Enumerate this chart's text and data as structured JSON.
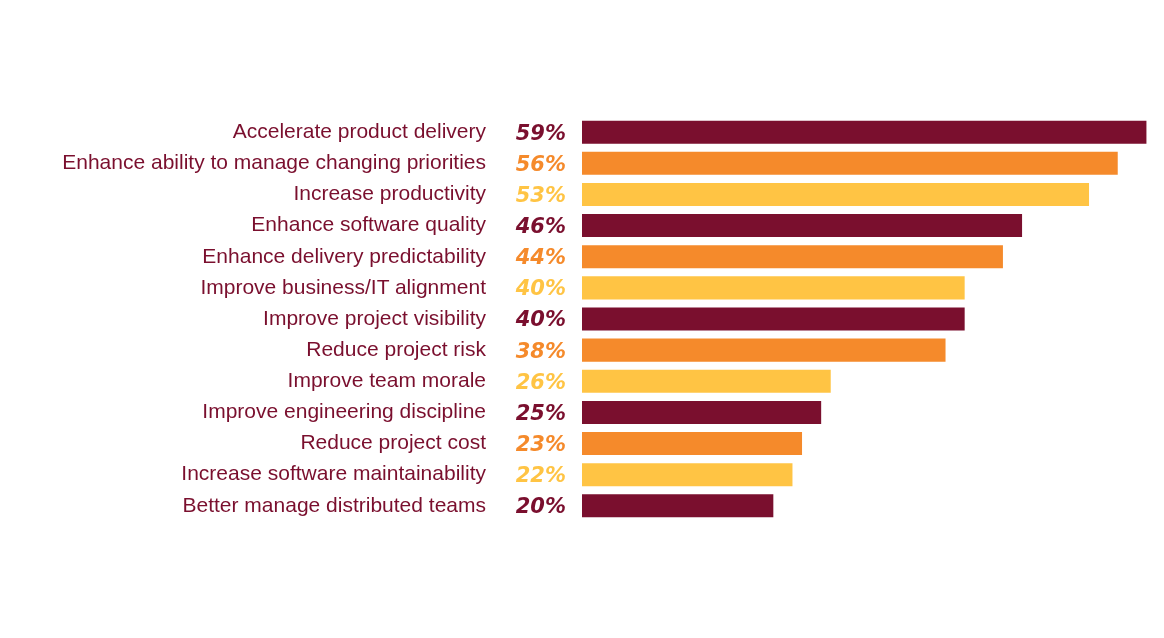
{
  "chart_data": {
    "type": "bar",
    "orientation": "horizontal",
    "categories": [
      "Accelerate product delivery",
      "Enhance ability to manage changing priorities",
      "Increase productivity",
      "Enhance software quality",
      "Enhance delivery predictability",
      "Improve business/IT alignment",
      "Improve project visibility",
      "Reduce project risk",
      "Improve team morale",
      "Improve engineering discipline",
      "Reduce project cost",
      "Increase software maintainability",
      "Better manage distributed teams"
    ],
    "values": [
      59,
      56,
      53,
      46,
      44,
      40,
      40,
      38,
      26,
      25,
      23,
      22,
      20
    ],
    "value_labels": [
      "59%",
      "56%",
      "53%",
      "46%",
      "44%",
      "40%",
      "40%",
      "38%",
      "26%",
      "25%",
      "23%",
      "22%",
      "20%"
    ],
    "colors": [
      "#7a0f2e",
      "#f58a2b",
      "#ffc444",
      "#7a0f2e",
      "#f58a2b",
      "#ffc444",
      "#7a0f2e",
      "#f58a2b",
      "#ffc444",
      "#7a0f2e",
      "#f58a2b",
      "#ffc444",
      "#7a0f2e"
    ],
    "grid": false,
    "legend": false
  }
}
